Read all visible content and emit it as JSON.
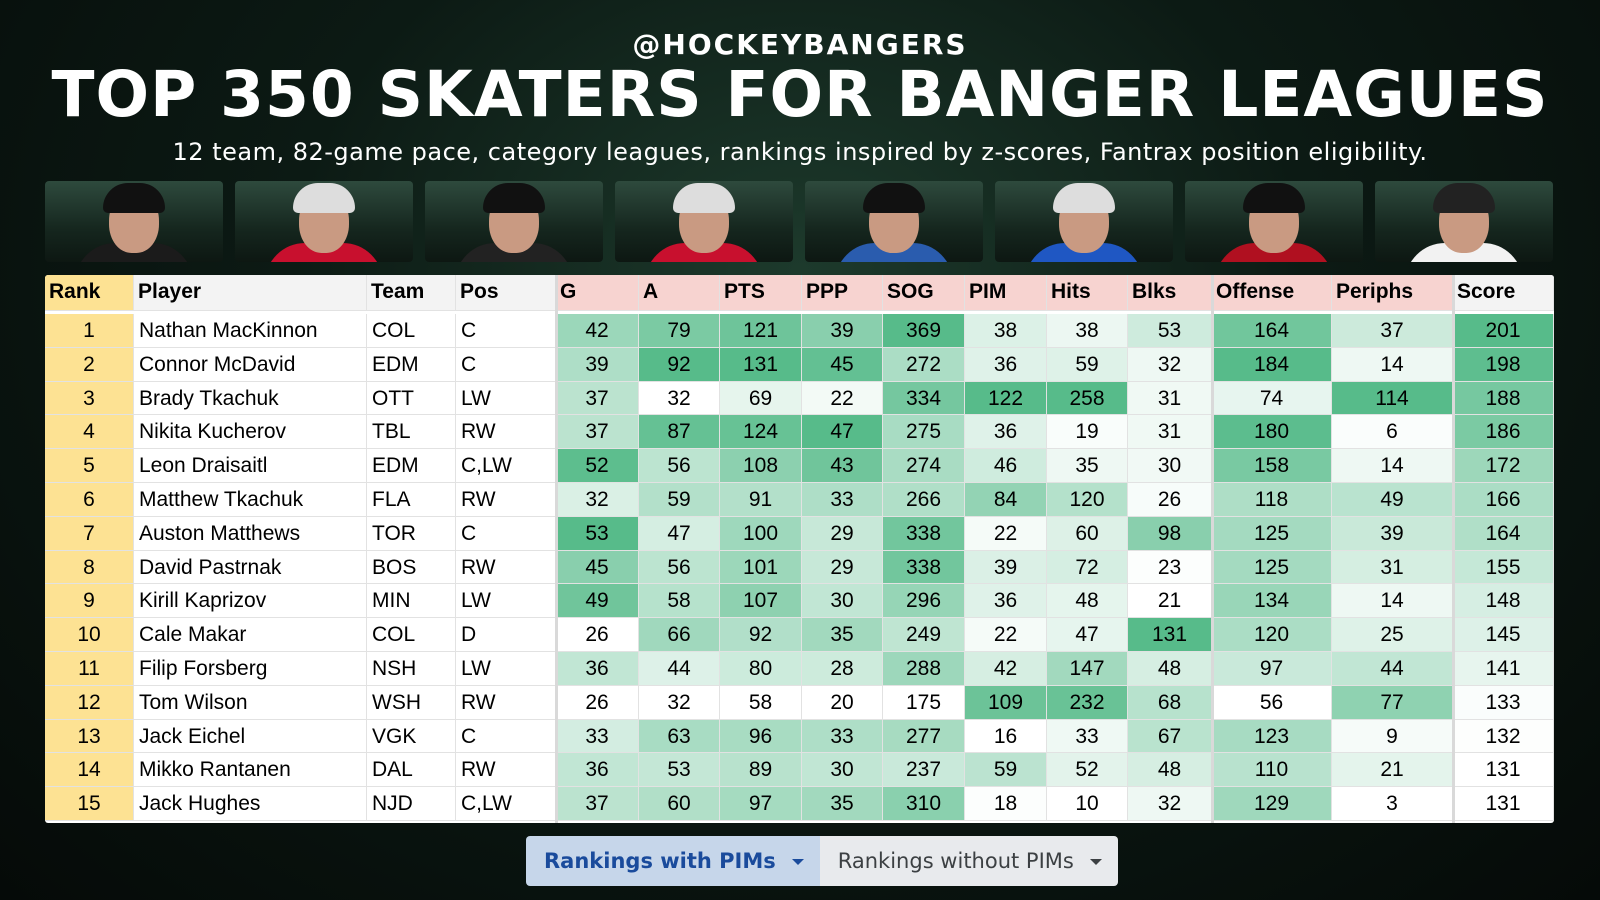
{
  "header": {
    "handle": "@HOCKEYBANGERS",
    "title": "TOP 350 SKATERS FOR BANGER LEAGUES",
    "subtitle": "12 team, 82-game pace, category leagues, rankings inspired by z-scores, Fantrax position eligibility."
  },
  "table": {
    "columns": [
      "Rank",
      "Player",
      "Team",
      "Pos",
      "G",
      "A",
      "PTS",
      "PPP",
      "SOG",
      "PIM",
      "Hits",
      "Blks",
      "Offense",
      "Periphs",
      "Score"
    ],
    "rows": [
      [
        1,
        "Nathan MacKinnon",
        "COL",
        "C",
        42,
        79,
        121,
        39,
        369,
        38,
        38,
        53,
        164,
        37,
        201
      ],
      [
        2,
        "Connor McDavid",
        "EDM",
        "C",
        39,
        92,
        131,
        45,
        272,
        36,
        59,
        32,
        184,
        14,
        198
      ],
      [
        3,
        "Brady Tkachuk",
        "OTT",
        "LW",
        37,
        32,
        69,
        22,
        334,
        122,
        258,
        31,
        74,
        114,
        188
      ],
      [
        4,
        "Nikita Kucherov",
        "TBL",
        "RW",
        37,
        87,
        124,
        47,
        275,
        36,
        19,
        31,
        180,
        6,
        186
      ],
      [
        5,
        "Leon Draisaitl",
        "EDM",
        "C,LW",
        52,
        56,
        108,
        43,
        274,
        46,
        35,
        30,
        158,
        14,
        172
      ],
      [
        6,
        "Matthew Tkachuk",
        "FLA",
        "RW",
        32,
        59,
        91,
        33,
        266,
        84,
        120,
        26,
        118,
        49,
        166
      ],
      [
        7,
        "Auston Matthews",
        "TOR",
        "C",
        53,
        47,
        100,
        29,
        338,
        22,
        60,
        98,
        125,
        39,
        164
      ],
      [
        8,
        "David Pastrnak",
        "BOS",
        "RW",
        45,
        56,
        101,
        29,
        338,
        39,
        72,
        23,
        125,
        31,
        155
      ],
      [
        9,
        "Kirill Kaprizov",
        "MIN",
        "LW",
        49,
        58,
        107,
        30,
        296,
        36,
        48,
        21,
        134,
        14,
        148
      ],
      [
        10,
        "Cale Makar",
        "COL",
        "D",
        26,
        66,
        92,
        35,
        249,
        22,
        47,
        131,
        120,
        25,
        145
      ],
      [
        11,
        "Filip Forsberg",
        "NSH",
        "LW",
        36,
        44,
        80,
        28,
        288,
        42,
        147,
        48,
        97,
        44,
        141
      ],
      [
        12,
        "Tom Wilson",
        "WSH",
        "RW",
        26,
        32,
        58,
        20,
        175,
        109,
        232,
        68,
        56,
        77,
        133
      ],
      [
        13,
        "Jack Eichel",
        "VGK",
        "C",
        33,
        63,
        96,
        33,
        277,
        16,
        33,
        67,
        123,
        9,
        132
      ],
      [
        14,
        "Mikko Rantanen",
        "DAL",
        "RW",
        36,
        53,
        89,
        30,
        237,
        59,
        52,
        48,
        110,
        21,
        131
      ],
      [
        15,
        "Jack Hughes",
        "NJD",
        "C,LW",
        37,
        60,
        97,
        35,
        310,
        18,
        10,
        32,
        129,
        3,
        131
      ]
    ]
  },
  "tabs": [
    "Rankings with PIMs",
    "Rankings without PIMs"
  ]
}
